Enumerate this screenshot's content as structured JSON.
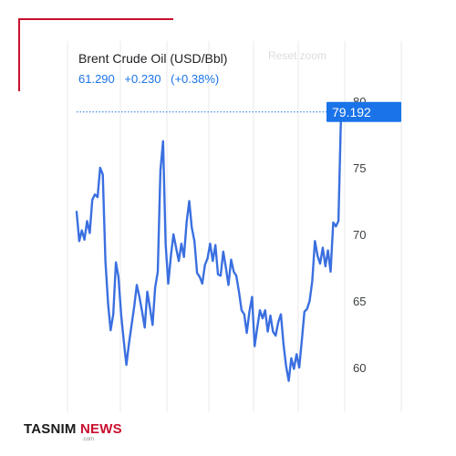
{
  "header": {
    "title": "Brent Crude Oil (USD/Bbl)",
    "price": "61.290",
    "change": "+0.230",
    "change_pct": "(+0.38%)",
    "reset_zoom_label": "Reset zoom"
  },
  "colors": {
    "line": "#3a6fe0",
    "price_text": "#1a73e8",
    "badge": "#1a73e8",
    "brand_red": "#c8102e"
  },
  "brand": {
    "name_part1": "TASNIM",
    "name_part2": "NEWS",
    "sub": ".com"
  },
  "chart_data": {
    "type": "line",
    "title": "Brent Crude Oil (USD/Bbl)",
    "xlabel": "",
    "ylabel": "",
    "ylim": [
      57.5,
      80.5
    ],
    "yticks": [
      60,
      65,
      70,
      75,
      80
    ],
    "grid": true,
    "current_value_label": "79.192",
    "current_value": 79.192,
    "series": [
      {
        "values": [
          71.7,
          69.5,
          70.3,
          69.6,
          71.0,
          70.1,
          72.6,
          73.0,
          72.8,
          75.0,
          74.5,
          68.0,
          64.8,
          62.8,
          64.0,
          67.9,
          66.8,
          64.0,
          62.0,
          60.2,
          61.8,
          63.2,
          64.6,
          66.2,
          65.3,
          64.2,
          63.0,
          65.7,
          64.5,
          63.2,
          66.0,
          67.2,
          74.8,
          77.0,
          69.3,
          66.3,
          68.4,
          70.0,
          69.0,
          68.0,
          69.3,
          68.3,
          70.9,
          72.5,
          70.5,
          69.5,
          67.1,
          66.8,
          66.3,
          67.7,
          68.2,
          69.3,
          68.0,
          69.2,
          67.0,
          66.9,
          68.7,
          67.5,
          66.2,
          68.1,
          67.2,
          66.9,
          65.7,
          64.3,
          64.0,
          62.6,
          64.2,
          65.3,
          61.6,
          63.0,
          64.3,
          63.7,
          64.3,
          62.7,
          63.9,
          62.7,
          62.4,
          63.4,
          64.0,
          61.8,
          60.1,
          59.0,
          60.7,
          59.9,
          61.0,
          60.0,
          62.0,
          64.2,
          64.4,
          65.0,
          66.5,
          69.5,
          68.4,
          67.8,
          69.0,
          67.6,
          68.8,
          67.2,
          70.9,
          70.6,
          71.0,
          79.192
        ]
      }
    ]
  }
}
